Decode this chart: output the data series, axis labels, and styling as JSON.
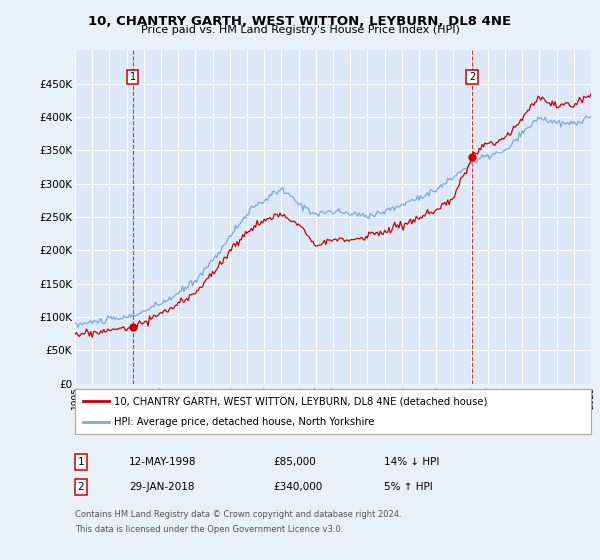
{
  "title": "10, CHANTRY GARTH, WEST WITTON, LEYBURN, DL8 4NE",
  "subtitle": "Price paid vs. HM Land Registry's House Price Index (HPI)",
  "background_color": "#e8f0f8",
  "plot_bg_color": "#dce8f5",
  "ylim": [
    0,
    500000
  ],
  "yticks": [
    0,
    50000,
    100000,
    150000,
    200000,
    250000,
    300000,
    350000,
    400000,
    450000
  ],
  "ytick_labels": [
    "£0",
    "£50K",
    "£100K",
    "£150K",
    "£200K",
    "£250K",
    "£300K",
    "£350K",
    "£400K",
    "£450K"
  ],
  "xmin_year": 1995,
  "xmax_year": 2025,
  "xtick_years": [
    1995,
    1996,
    1997,
    1998,
    1999,
    2000,
    2001,
    2002,
    2003,
    2004,
    2005,
    2006,
    2007,
    2008,
    2009,
    2010,
    2011,
    2012,
    2013,
    2014,
    2015,
    2016,
    2017,
    2018,
    2019,
    2020,
    2021,
    2022,
    2023,
    2024,
    2025
  ],
  "sale1_year": 1998.37,
  "sale1_price": 85000,
  "sale2_year": 2018.08,
  "sale2_price": 340000,
  "line_red_color": "#cc0000",
  "line_blue_color": "#7aaadd",
  "legend_line1": "10, CHANTRY GARTH, WEST WITTON, LEYBURN, DL8 4NE (detached house)",
  "legend_line2": "HPI: Average price, detached house, North Yorkshire",
  "footer1": "Contains HM Land Registry data © Crown copyright and database right 2024.",
  "footer2": "This data is licensed under the Open Government Licence v3.0.",
  "table_row1_label": "1",
  "table_row1_date": "12-MAY-1998",
  "table_row1_price": "£85,000",
  "table_row1_hpi": "14% ↓ HPI",
  "table_row2_label": "2",
  "table_row2_date": "29-JAN-2018",
  "table_row2_price": "£340,000",
  "table_row2_hpi": "5% ↑ HPI"
}
